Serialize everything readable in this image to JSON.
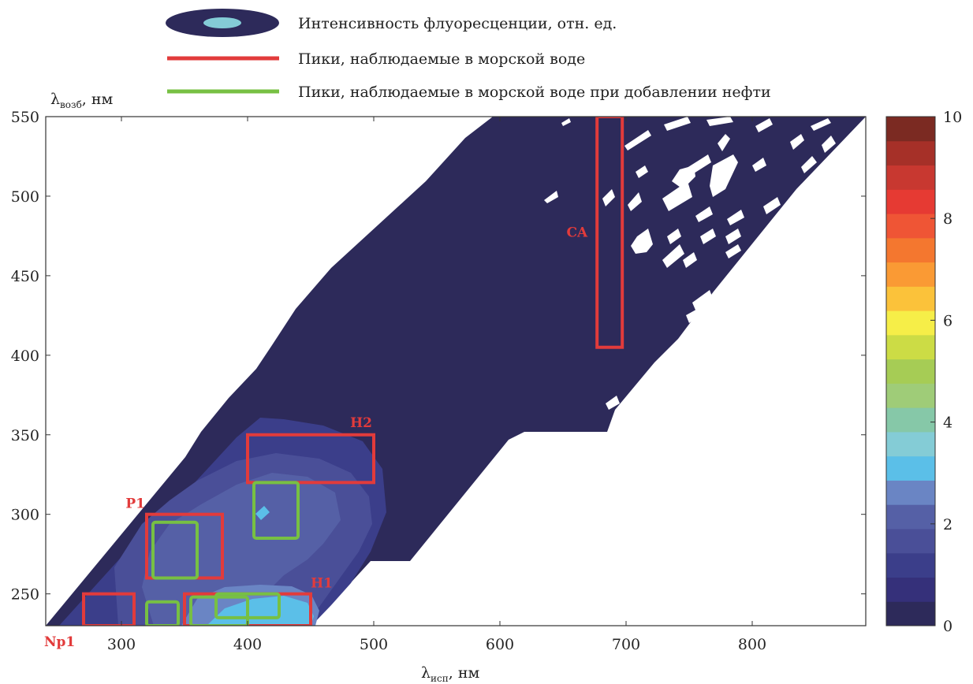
{
  "chart_data": {
    "type": "heatmap",
    "subtype": "excitation-emission contour map",
    "xlabel": "λ",
    "xlabel_sub": "исп",
    "xlabel_unit": ", нм",
    "ylabel": "λ",
    "ylabel_sub": "возб",
    "ylabel_unit": ", нм",
    "xlim": [
      240,
      890
    ],
    "ylim": [
      230,
      550
    ],
    "xticks": [
      "300",
      "400",
      "500",
      "600",
      "700",
      "800"
    ],
    "xtick_values": [
      300,
      400,
      500,
      600,
      700,
      800
    ],
    "yticks": [
      "250",
      "300",
      "350",
      "400",
      "450",
      "500",
      "550"
    ],
    "ytick_values": [
      250,
      300,
      350,
      400,
      450,
      500,
      550
    ],
    "colorbar": {
      "min": 0,
      "max": 10,
      "ticks": [
        "0",
        "2",
        "4",
        "6",
        "8",
        "10"
      ],
      "tick_values": [
        0,
        2,
        4,
        6,
        8,
        10
      ],
      "colors": [
        "#2d2a5a",
        "#35307a",
        "#3b3e8a",
        "#4a4f98",
        "#5560a6",
        "#6a85c4",
        "#5bbfe8",
        "#84ccd6",
        "#86c8a8",
        "#9fcc78",
        "#a6cc55",
        "#ccdc45",
        "#f6ee48",
        "#fbc23a",
        "#fa9a34",
        "#f4772f",
        "#ef5535",
        "#e63a33",
        "#c83830",
        "#a63028",
        "#7b2a22"
      ]
    },
    "legend": {
      "intensity": "Интенсивность флуоресценции, отн. ед.",
      "red": "Пики, наблюдаемые в морской воде",
      "green": "Пики, наблюдаемые в морской воде при добавлении нефти"
    },
    "colors": {
      "background_level": "#2d2a5a",
      "red": "#e23b3b",
      "green": "#77c043"
    },
    "peaks_seawater": [
      {
        "label": "Np1",
        "x": [
          270,
          310
        ],
        "y": [
          230,
          250
        ]
      },
      {
        "label": "P1",
        "x": [
          320,
          380
        ],
        "y": [
          260,
          300
        ]
      },
      {
        "label": "H1",
        "x": [
          350,
          450
        ],
        "y": [
          230,
          250
        ]
      },
      {
        "label": "H2",
        "x": [
          400,
          500
        ],
        "y": [
          320,
          350
        ]
      },
      {
        "label": "CA",
        "x": [
          677,
          697
        ],
        "y": [
          405,
          550
        ]
      }
    ],
    "peaks_oil": [
      {
        "x": [
          320,
          345
        ],
        "y": [
          230,
          245
        ]
      },
      {
        "x": [
          325,
          360
        ],
        "y": [
          260,
          295
        ]
      },
      {
        "x": [
          355,
          400
        ],
        "y": [
          230,
          248
        ]
      },
      {
        "x": [
          375,
          425
        ],
        "y": [
          235,
          250
        ]
      },
      {
        "x": [
          405,
          440
        ],
        "y": [
          285,
          320
        ]
      }
    ]
  }
}
